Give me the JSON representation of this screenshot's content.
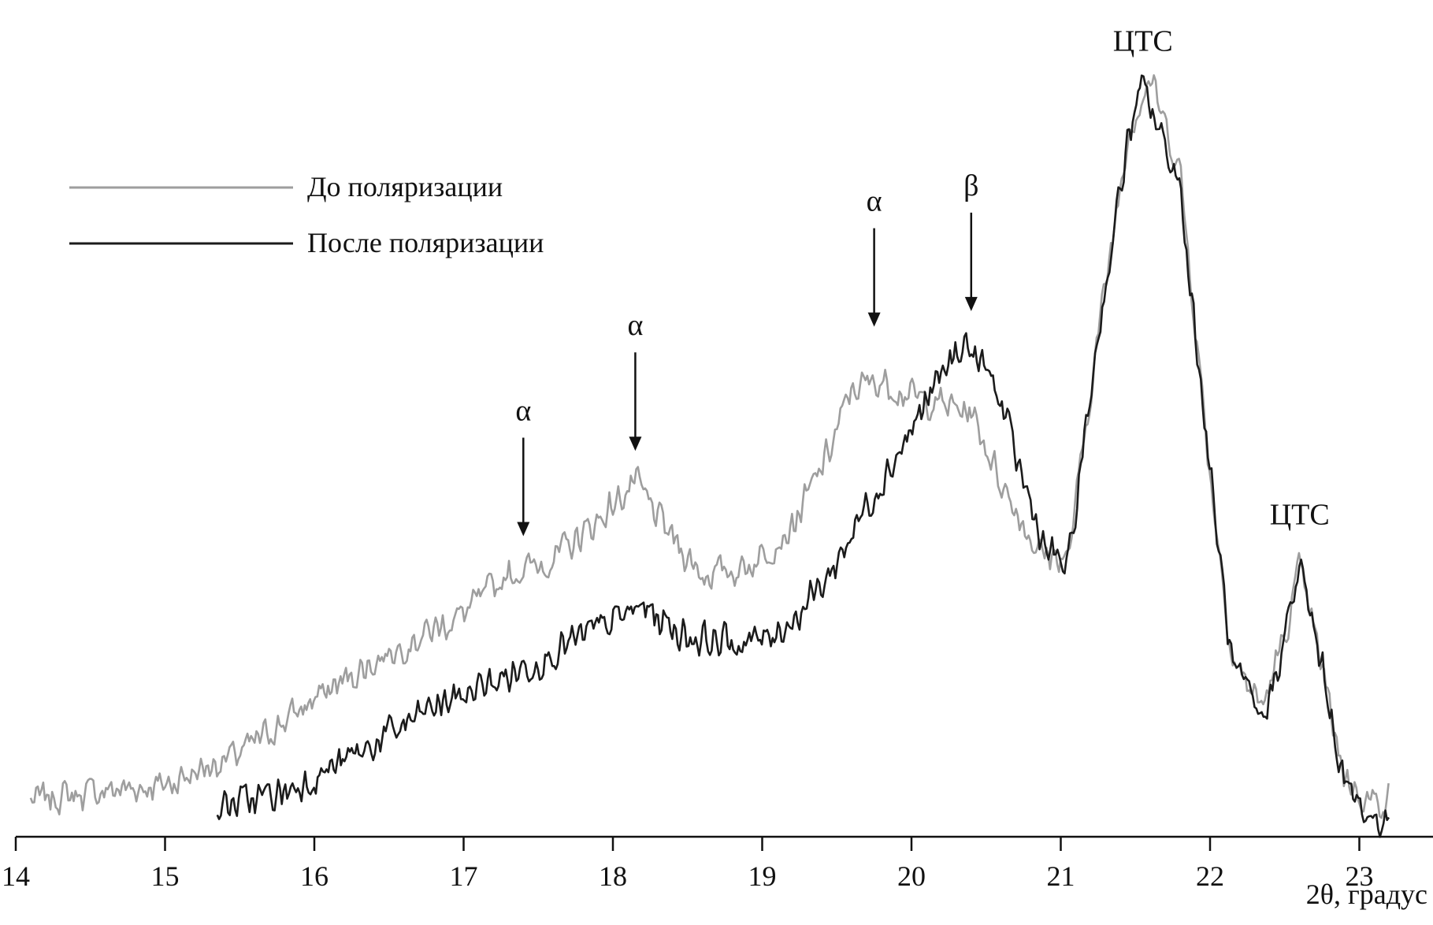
{
  "chart_data": {
    "type": "line",
    "title": "",
    "xlabel": "2θ, градус",
    "ylabel": "",
    "xlim": [
      14,
      23.5
    ],
    "ylim": [
      0,
      100
    ],
    "x_ticks": [
      "14",
      "15",
      "16",
      "17",
      "18",
      "19",
      "20",
      "21",
      "22",
      "23"
    ],
    "grid": false,
    "legend": "top-left",
    "noise_seed": 7,
    "series": [
      {
        "name": "До поляризации",
        "color": "#9e9e9e",
        "noise": 2.6,
        "points": [
          [
            14.1,
            3
          ],
          [
            14.5,
            4
          ],
          [
            15.0,
            5
          ],
          [
            15.5,
            9
          ],
          [
            16.0,
            16
          ],
          [
            16.5,
            22
          ],
          [
            17.0,
            27
          ],
          [
            17.3,
            32
          ],
          [
            17.6,
            34
          ],
          [
            17.9,
            39
          ],
          [
            18.15,
            44
          ],
          [
            18.35,
            38
          ],
          [
            18.6,
            32
          ],
          [
            18.9,
            33
          ],
          [
            19.2,
            38
          ],
          [
            19.45,
            48
          ],
          [
            19.6,
            56
          ],
          [
            19.8,
            57
          ],
          [
            20.0,
            55
          ],
          [
            20.2,
            54
          ],
          [
            20.4,
            53
          ],
          [
            20.6,
            44
          ],
          [
            20.85,
            35
          ],
          [
            21.05,
            34
          ],
          [
            21.25,
            63
          ],
          [
            21.45,
            89
          ],
          [
            21.6,
            96
          ],
          [
            21.8,
            84
          ],
          [
            22.0,
            45
          ],
          [
            22.15,
            21
          ],
          [
            22.35,
            15
          ],
          [
            22.5,
            24
          ],
          [
            22.6,
            33
          ],
          [
            22.75,
            20
          ],
          [
            22.9,
            6
          ],
          [
            23.05,
            3
          ],
          [
            23.2,
            3
          ]
        ]
      },
      {
        "name": "После поляризации",
        "color": "#1b1b1b",
        "noise": 2.8,
        "points": [
          [
            15.35,
            2
          ],
          [
            15.8,
            4
          ],
          [
            16.3,
            9
          ],
          [
            16.8,
            15
          ],
          [
            17.3,
            19
          ],
          [
            17.8,
            24
          ],
          [
            18.2,
            28
          ],
          [
            18.5,
            24
          ],
          [
            18.9,
            23
          ],
          [
            19.2,
            26
          ],
          [
            19.45,
            32
          ],
          [
            19.7,
            41
          ],
          [
            19.95,
            49
          ],
          [
            20.15,
            56
          ],
          [
            20.35,
            62
          ],
          [
            20.55,
            57
          ],
          [
            20.75,
            44
          ],
          [
            20.9,
            35
          ],
          [
            21.05,
            33
          ],
          [
            21.25,
            63
          ],
          [
            21.45,
            88
          ],
          [
            21.55,
            95
          ],
          [
            21.8,
            82
          ],
          [
            22.0,
            45
          ],
          [
            22.15,
            20
          ],
          [
            22.35,
            13
          ],
          [
            22.5,
            24
          ],
          [
            22.6,
            33
          ],
          [
            22.75,
            20
          ],
          [
            22.9,
            5
          ],
          [
            23.05,
            1
          ],
          [
            23.2,
            0
          ]
        ]
      }
    ],
    "annotations": [
      {
        "text": "α",
        "x": 17.4,
        "y": 37,
        "arrow": true
      },
      {
        "text": "α",
        "x": 18.15,
        "y": 48,
        "arrow": true
      },
      {
        "text": "α",
        "x": 19.75,
        "y": 64,
        "arrow": true
      },
      {
        "text": "β",
        "x": 20.4,
        "y": 66,
        "arrow": true
      },
      {
        "text": "ЦТС",
        "x": 21.55,
        "y": 98,
        "arrow": false
      },
      {
        "text": "ЦТС",
        "x": 22.6,
        "y": 37,
        "arrow": false
      }
    ]
  }
}
